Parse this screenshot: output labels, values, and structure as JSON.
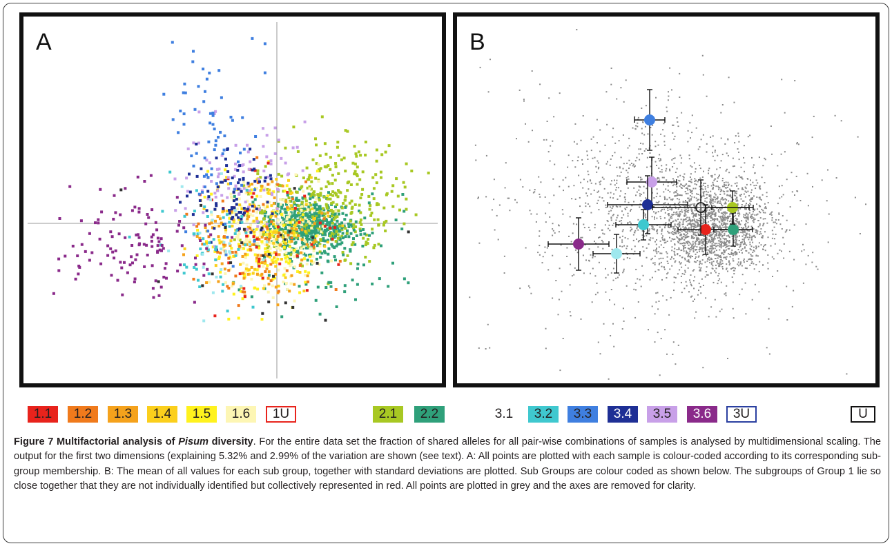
{
  "panels": {
    "a": {
      "label": "A"
    },
    "b": {
      "label": "B"
    }
  },
  "legend": [
    {
      "label": "1.1",
      "bg": "#e8231c",
      "fg": "#231f20",
      "border": "none"
    },
    {
      "label": "1.2",
      "bg": "#f07a1c",
      "fg": "#231f20",
      "border": "none"
    },
    {
      "label": "1.3",
      "bg": "#f5a21c",
      "fg": "#231f20",
      "border": "none"
    },
    {
      "label": "1.4",
      "bg": "#fbcf1c",
      "fg": "#231f20",
      "border": "none"
    },
    {
      "label": "1.5",
      "bg": "#fff21e",
      "fg": "#231f20",
      "border": "none"
    },
    {
      "label": "1.6",
      "bg": "#fdf6b4",
      "fg": "#231f20",
      "border": "none"
    },
    {
      "label": "1U",
      "bg": "#ffffff",
      "fg": "#231f20",
      "border": "#e8231c"
    },
    {
      "label": "2.1",
      "bg": "#a8c823",
      "fg": "#231f20",
      "border": "none"
    },
    {
      "label": "2.2",
      "bg": "#2fa07a",
      "fg": "#231f20",
      "border": "none"
    },
    {
      "label": "3.1",
      "bg": "#ffffff",
      "fg": "#231f20",
      "border": "none"
    },
    {
      "label": "3.2",
      "bg": "#3fc8cf",
      "fg": "#231f20",
      "border": "none"
    },
    {
      "label": "3.3",
      "bg": "#3f7fe0",
      "fg": "#231f20",
      "border": "none"
    },
    {
      "label": "3.4",
      "bg": "#1e2f95",
      "fg": "#ffffff",
      "border": "none"
    },
    {
      "label": "3.5",
      "bg": "#c8a0e8",
      "fg": "#231f20",
      "border": "none"
    },
    {
      "label": "3.6",
      "bg": "#8a2a8a",
      "fg": "#ffffff",
      "border": "none"
    },
    {
      "label": "3U",
      "bg": "#ffffff",
      "fg": "#231f20",
      "border": "#2a3fa0"
    },
    {
      "label": "U",
      "bg": "#ffffff",
      "fg": "#231f20",
      "border": "#111111"
    }
  ],
  "caption": {
    "title": "Figure 7 Multifactorial analysis of ",
    "title_italic": "Pisum",
    "title_end": " diversity",
    "body": ". For the entire data set the fraction of shared alleles for all pair-wise combinations of samples is analysed by multidimensional scaling. The output for the first two dimensions (explaining 5.32% and 2.99% of the variation are shown (see text). A: All points are plotted with each sample is colour-coded according to its corresponding sub-group membership. B: The mean of all values for each sub group, together with standard deviations are plotted. Sub Groups are colour coded as shown below. The subgroups of Group 1 lie so close together that they are not individually identified but collectively represented in red. All points are plotted in grey and the axes are removed for clarity."
  },
  "colors": {
    "group_1_1": "#e8231c",
    "group_1_2": "#f07a1c",
    "group_1_3": "#f5a21c",
    "group_1_4": "#fbcf1c",
    "group_1_5": "#fff21e",
    "group_1_6": "#fdf6b4",
    "group_2_1": "#a8c823",
    "group_2_2": "#2fa07a",
    "group_3_1": "#9fe8ee",
    "group_3_2": "#3fc8cf",
    "group_3_3": "#3f7fe0",
    "group_3_4": "#1e2f95",
    "group_3_5": "#c8a0e8",
    "group_3_6": "#8a2a8a",
    "points_grey": "#8a8a8a"
  }
}
